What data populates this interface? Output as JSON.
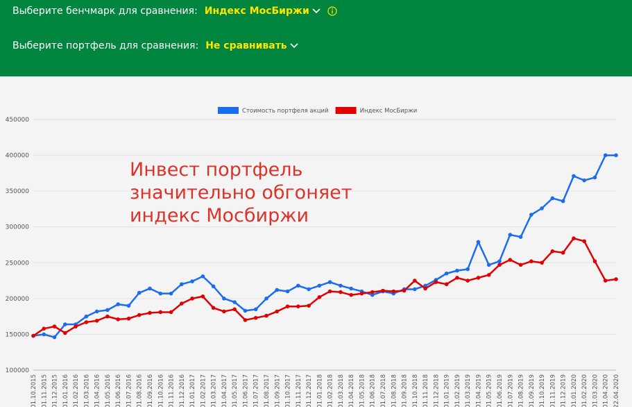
{
  "header": {
    "benchmark_label": "Выберите бенчмарк для сравнения:",
    "benchmark_value": "Индекс МосБиржи",
    "portfolio_label": "Выберите портфель для сравнения:",
    "portfolio_value": "Не сравнивать"
  },
  "chart_data": {
    "type": "line",
    "annotation": [
      "Инвест портфель",
      "значительно обгоняет",
      "индекс Мосбиржи"
    ],
    "categories": [
      "01.10.2015",
      "01.11.2015",
      "01.12.2015",
      "01.01.2016",
      "01.02.2016",
      "01.03.2016",
      "01.04.2016",
      "01.05.2016",
      "01.06.2016",
      "01.07.2016",
      "01.08.2016",
      "01.09.2016",
      "01.10.2016",
      "01.11.2016",
      "01.12.2016",
      "01.01.2017",
      "01.02.2017",
      "01.03.2017",
      "01.04.2017",
      "01.05.2017",
      "01.06.2017",
      "01.07.2017",
      "01.08.2017",
      "01.09.2017",
      "01.10.2017",
      "01.11.2017",
      "01.12.2017",
      "01.01.2018",
      "01.02.2018",
      "01.03.2018",
      "01.04.2018",
      "01.05.2018",
      "01.06.2018",
      "01.07.2018",
      "01.08.2018",
      "01.09.2018",
      "01.10.2018",
      "01.11.2018",
      "01.12.2018",
      "01.01.2019",
      "01.02.2019",
      "01.03.2019",
      "01.04.2019",
      "01.05.2019",
      "01.06.2019",
      "01.07.2019",
      "01.08.2019",
      "01.09.2019",
      "01.10.2019",
      "01.11.2019",
      "01.12.2019",
      "01.01.2020",
      "01.02.2020",
      "01.03.2020",
      "01.04.2020",
      "22.04.2020"
    ],
    "series": [
      {
        "name": "Стоимость портфеля акций",
        "color": "#1a6cf0",
        "values": [
          148000,
          150000,
          146000,
          164000,
          164000,
          175000,
          182000,
          184000,
          192000,
          190000,
          208000,
          214000,
          207000,
          207000,
          220000,
          224000,
          231000,
          217000,
          200000,
          195000,
          183000,
          185000,
          200000,
          212000,
          210000,
          218000,
          213000,
          218000,
          223000,
          218000,
          214000,
          210000,
          205000,
          210000,
          207000,
          213000,
          213000,
          218000,
          226000,
          235000,
          239000,
          241000,
          279000,
          247000,
          252000,
          289000,
          286000,
          317000,
          326000,
          340000,
          336000,
          371000,
          365000,
          369000,
          400000,
          400000
        ]
      },
      {
        "name": "Индекс МосБиржи",
        "color": "#e00000",
        "values": [
          148000,
          158000,
          161000,
          152000,
          161000,
          167000,
          169000,
          175000,
          171000,
          172000,
          177000,
          180000,
          181000,
          181000,
          193000,
          200000,
          203000,
          187000,
          182000,
          185000,
          170000,
          173000,
          176000,
          182000,
          189000,
          189000,
          190000,
          202000,
          210000,
          209000,
          205000,
          207000,
          209000,
          211000,
          210000,
          211000,
          225000,
          214000,
          223000,
          220000,
          229000,
          225000,
          229000,
          233000,
          247000,
          254000,
          247000,
          252000,
          250000,
          266000,
          264000,
          284000,
          280000,
          252000,
          225000,
          227000
        ]
      }
    ],
    "ylim": [
      100000,
      450000
    ],
    "yticks": [
      100000,
      150000,
      200000,
      250000,
      300000,
      350000,
      400000,
      450000
    ],
    "grid": true
  }
}
